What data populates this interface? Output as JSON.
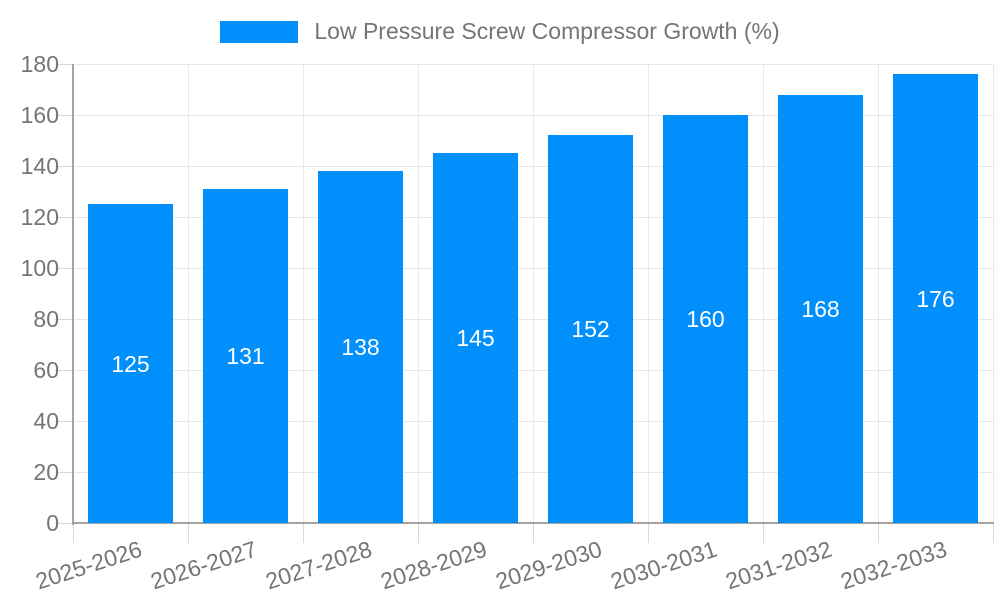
{
  "chart_data": {
    "type": "bar",
    "title": "",
    "legend_label": "Low Pressure Screw Compressor Growth (%)",
    "legend_position": "top-center",
    "categories": [
      "2025-2026",
      "2026-2027",
      "2027-2028",
      "2028-2029",
      "2029-2030",
      "2030-2031",
      "2031-2032",
      "2032-2033"
    ],
    "values": [
      125,
      131,
      138,
      145,
      152,
      160,
      168,
      176
    ],
    "xlabel": "",
    "ylabel": "",
    "ylim": [
      0,
      180
    ],
    "ytick_step": 20,
    "grid": true,
    "x_label_rotation_deg": -18,
    "colors": {
      "bar": "#008FFB",
      "axis_text": "#757575",
      "data_label": "#ffffff",
      "gridline": "#e7e7e7",
      "axis_line": "#a3a3a3",
      "tick": "#d9d9d9",
      "background": "#ffffff"
    }
  }
}
